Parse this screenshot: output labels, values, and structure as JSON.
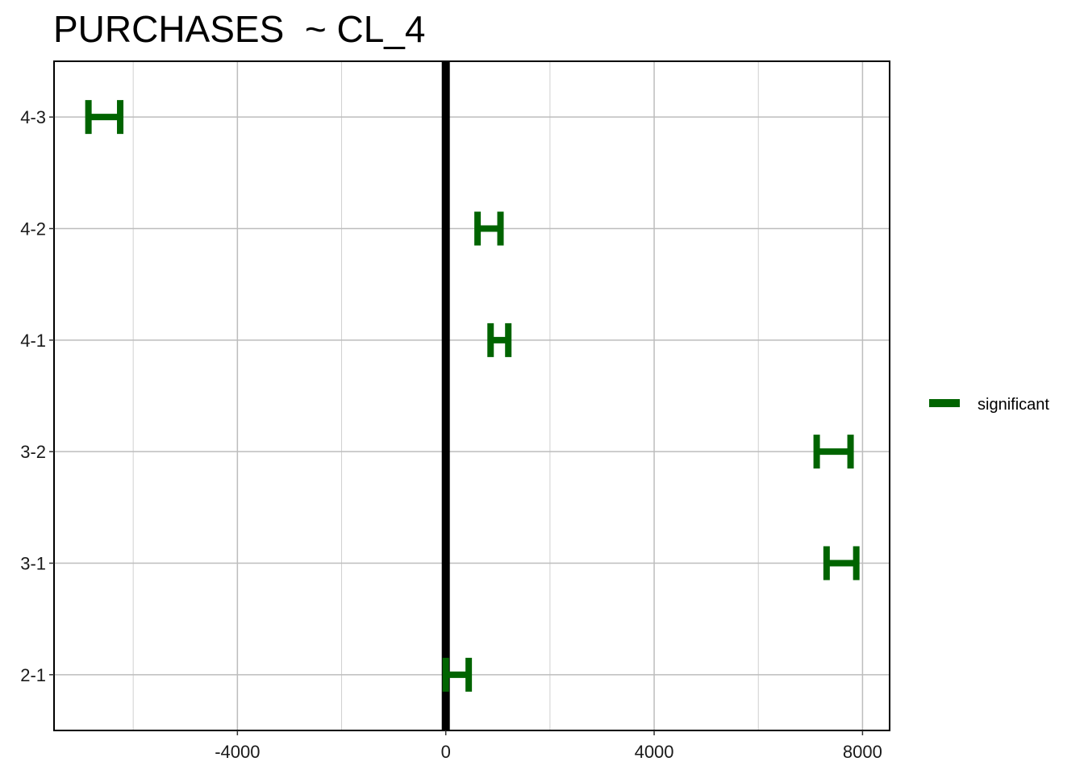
{
  "chart_data": {
    "type": "errorbar",
    "title": "PURCHASES  ~ CL_4",
    "xlabel": "",
    "ylabel": "",
    "categories": [
      "2-1",
      "3-1",
      "3-2",
      "4-1",
      "4-2",
      "4-3"
    ],
    "series": [
      {
        "name": "significant",
        "color": "#006400",
        "intervals": [
          {
            "category": "2-1",
            "low": 0,
            "high": 440
          },
          {
            "category": "3-1",
            "low": 7310,
            "high": 7880
          },
          {
            "category": "3-2",
            "low": 7120,
            "high": 7770
          },
          {
            "category": "4-1",
            "low": 860,
            "high": 1200
          },
          {
            "category": "4-2",
            "low": 610,
            "high": 1050
          },
          {
            "category": "4-3",
            "low": -6860,
            "high": -6250
          }
        ]
      }
    ],
    "reference_line": 0,
    "xlim": [
      -7520,
      8520
    ],
    "xticks": [
      -4000,
      0,
      4000,
      8000
    ],
    "xtick_labels": [
      "-4000",
      "0",
      "4000",
      "8000"
    ],
    "grid": true,
    "legend_position": "right"
  }
}
